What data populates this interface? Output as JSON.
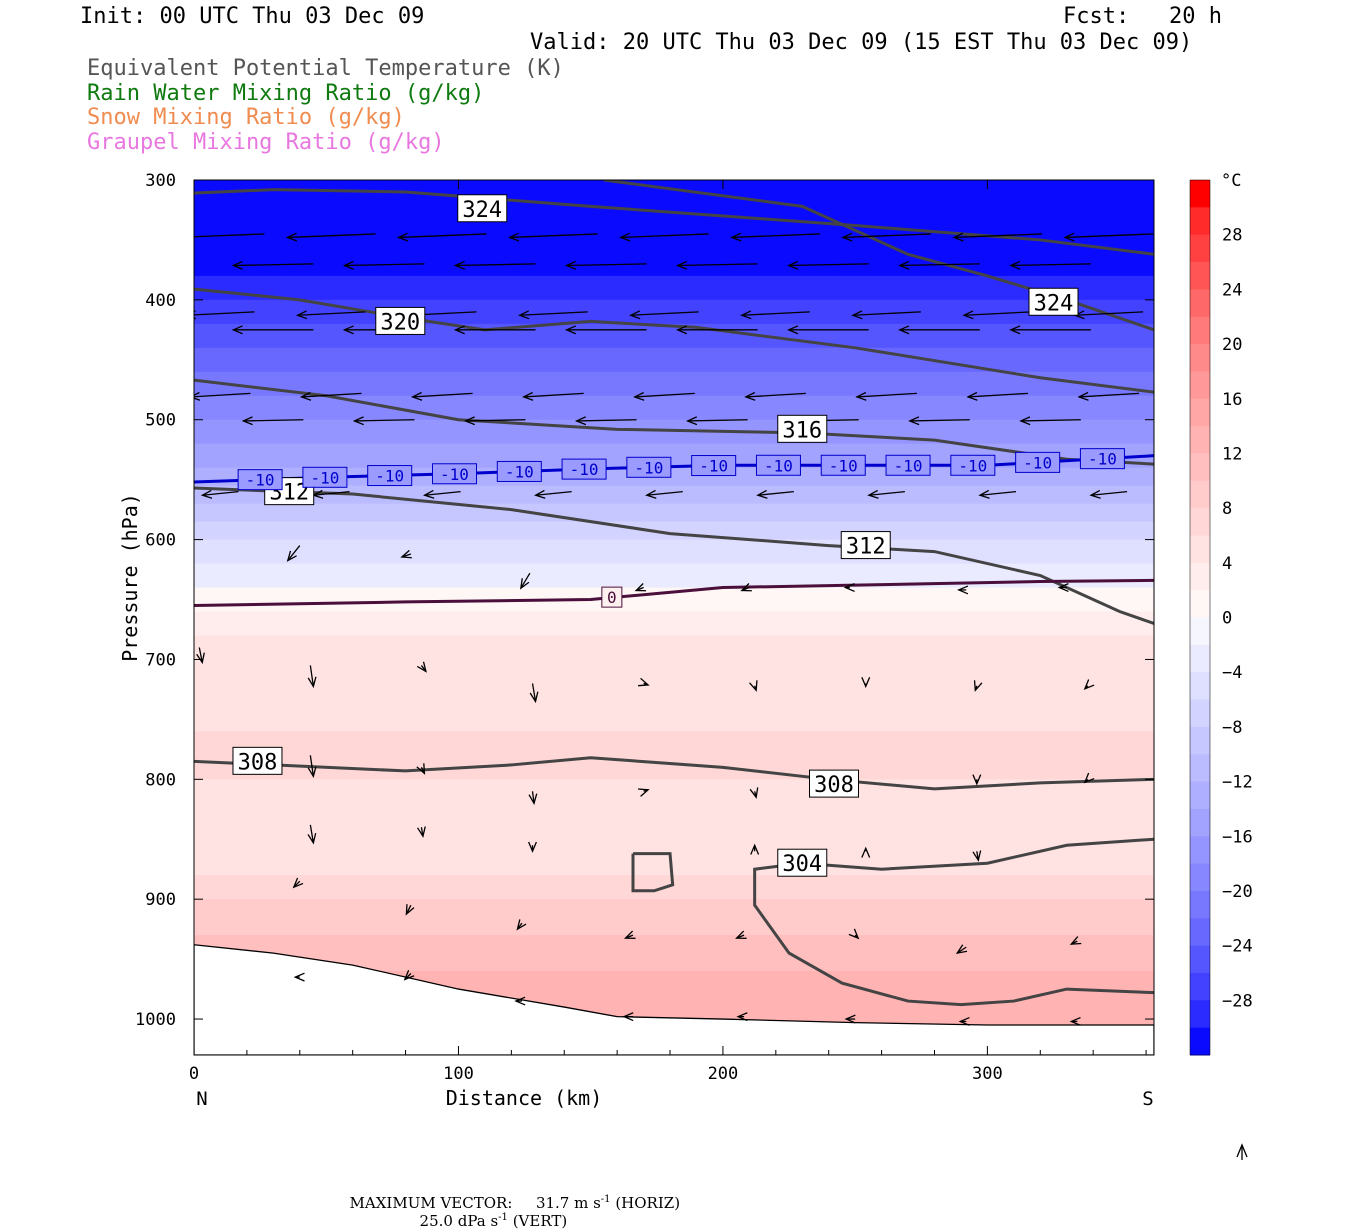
{
  "header": {
    "init": "Init: 00 UTC Thu 03 Dec 09",
    "fcst": "Fcst:   20 h",
    "valid": "Valid: 20 UTC Thu 03 Dec 09 (15 EST Thu 03 Dec 09)"
  },
  "legend_titles": [
    {
      "text": "Equivalent Potential Temperature (K)",
      "color": "#555555"
    },
    {
      "text": "Rain Water Mixing Ratio (g/kg)",
      "color": "#0f7a0f"
    },
    {
      "text": "Snow Mixing Ratio (g/kg)",
      "color": "#f08c50"
    },
    {
      "text": "Graupel Mixing Ratio (g/kg)",
      "color": "#e878e0"
    }
  ],
  "footer": {
    "max_vector_label": "MAXIMUM VECTOR:",
    "horiz_value": "31.7 m s",
    "horiz_exp": "-1",
    "horiz_tag": "(HORIZ)",
    "vert_value": "25.0 dPa s",
    "vert_exp": "-1",
    "vert_tag": "(VERT)"
  },
  "chart_data": {
    "type": "cross-section",
    "xlabel": "Distance (km)",
    "ylabel": "Pressure (hPa)",
    "x_ticks": [
      "0",
      "100",
      "200",
      "300"
    ],
    "x_end_labels": {
      "left": "N",
      "right": "S"
    },
    "xlim": [
      0,
      363
    ],
    "y_ticks": [
      "300",
      "400",
      "500",
      "600",
      "700",
      "800",
      "900",
      "1000"
    ],
    "ylim": [
      1030,
      300
    ],
    "colorbar": {
      "unit": "°C",
      "labels": [
        "28",
        "24",
        "20",
        "16",
        "12",
        "8",
        "4",
        "0",
        "-4",
        "-8",
        "-12",
        "-16",
        "-20",
        "-24",
        "-28"
      ],
      "levels": [
        32,
        30,
        28,
        26,
        24,
        22,
        20,
        18,
        16,
        14,
        12,
        10,
        8,
        6,
        4,
        2,
        0,
        -2,
        -4,
        -6,
        -8,
        -10,
        -12,
        -14,
        -16,
        -18,
        -20,
        -22,
        -24,
        -26,
        -28,
        -30,
        -32
      ],
      "colors_warm": [
        "#ff0000",
        "#ff2a2a",
        "#ff4141",
        "#ff5555",
        "#ff6868",
        "#ff7a7a",
        "#ff8a8a",
        "#ff9898",
        "#ffa6a6",
        "#ffb3b3",
        "#ffbfbf",
        "#ffcbcb",
        "#ffd7d7",
        "#ffe2e2",
        "#ffeded",
        "#fff6f6"
      ],
      "colors_cold": [
        "#f6f6ff",
        "#ebebff",
        "#dfdfff",
        "#d3d3ff",
        "#c7c7ff",
        "#bbbbff",
        "#afafff",
        "#a2a2ff",
        "#9595ff",
        "#8787ff",
        "#7878ff",
        "#6868ff",
        "#5656ff",
        "#4242ff",
        "#2b2bff",
        "#0a0aff"
      ]
    },
    "temperature_bands_degC": [
      {
        "p": 300,
        "t": -32
      },
      {
        "p": 340,
        "t": -30
      },
      {
        "p": 380,
        "t": -28
      },
      {
        "p": 400,
        "t": -26
      },
      {
        "p": 420,
        "t": -24
      },
      {
        "p": 440,
        "t": -22
      },
      {
        "p": 460,
        "t": -20
      },
      {
        "p": 480,
        "t": -18
      },
      {
        "p": 500,
        "t": -16
      },
      {
        "p": 520,
        "t": -14
      },
      {
        "p": 540,
        "t": -12
      },
      {
        "p": 555,
        "t": -10
      },
      {
        "p": 570,
        "t": -8
      },
      {
        "p": 585,
        "t": -6
      },
      {
        "p": 600,
        "t": -4
      },
      {
        "p": 620,
        "t": -2
      },
      {
        "p": 640,
        "t": 0
      },
      {
        "p": 660,
        "t": 2
      },
      {
        "p": 680,
        "t": 4
      },
      {
        "p": 700,
        "t": 5
      },
      {
        "p": 760,
        "t": 6
      },
      {
        "p": 800,
        "t": 4
      },
      {
        "p": 850,
        "t": 4
      },
      {
        "p": 880,
        "t": 6
      },
      {
        "p": 900,
        "t": 8
      },
      {
        "p": 930,
        "t": 10
      },
      {
        "p": 960,
        "t": 12
      },
      {
        "p": 1000,
        "t": 13
      }
    ],
    "theta_e_contours_K": [
      {
        "label": "324",
        "points": [
          [
            0,
            311
          ],
          [
            30,
            308
          ],
          [
            80,
            310
          ],
          [
            150,
            322
          ],
          [
            250,
            338
          ],
          [
            320,
            350
          ],
          [
            363,
            362
          ]
        ]
      },
      {
        "label": "324",
        "points": [
          [
            155,
            300
          ],
          [
            230,
            322
          ],
          [
            270,
            362
          ],
          [
            300,
            380
          ],
          [
            330,
            400
          ],
          [
            363,
            425
          ]
        ]
      },
      {
        "label": "320",
        "points": [
          [
            0,
            391
          ],
          [
            40,
            400
          ],
          [
            80,
            415
          ],
          [
            110,
            425
          ],
          [
            150,
            418
          ],
          [
            190,
            423
          ],
          [
            250,
            440
          ],
          [
            320,
            465
          ],
          [
            363,
            477
          ]
        ]
      },
      {
        "label": "316",
        "points": [
          [
            0,
            467
          ],
          [
            50,
            480
          ],
          [
            100,
            500
          ],
          [
            160,
            508
          ],
          [
            230,
            511
          ],
          [
            280,
            517
          ],
          [
            330,
            533
          ],
          [
            363,
            537
          ]
        ]
      },
      {
        "label": "312",
        "points": [
          [
            0,
            557
          ],
          [
            60,
            562
          ],
          [
            120,
            575
          ],
          [
            180,
            595
          ],
          [
            240,
            605
          ],
          [
            280,
            610
          ],
          [
            320,
            630
          ],
          [
            350,
            660
          ],
          [
            363,
            670
          ]
        ]
      },
      {
        "label": "308",
        "points": [
          [
            0,
            785
          ],
          [
            30,
            788
          ],
          [
            80,
            793
          ],
          [
            120,
            788
          ],
          [
            150,
            782
          ],
          [
            200,
            790
          ],
          [
            240,
            800
          ],
          [
            280,
            808
          ],
          [
            320,
            803
          ],
          [
            363,
            800
          ]
        ]
      },
      {
        "label": "304",
        "points": [
          [
            363,
            850
          ],
          [
            330,
            855
          ],
          [
            300,
            870
          ],
          [
            260,
            875
          ],
          [
            230,
            870
          ],
          [
            212,
            875
          ],
          [
            212,
            905
          ],
          [
            225,
            945
          ],
          [
            245,
            970
          ],
          [
            270,
            985
          ],
          [
            290,
            988
          ],
          [
            310,
            985
          ],
          [
            330,
            975
          ],
          [
            363,
            978
          ]
        ]
      },
      {
        "label": "",
        "points": [
          [
            166,
            862
          ],
          [
            180,
            862
          ],
          [
            181,
            888
          ],
          [
            174,
            893
          ],
          [
            166,
            893
          ],
          [
            166,
            862
          ]
        ]
      }
    ],
    "isotherm_labels": [
      {
        "label": "-10",
        "color": "#0000cc",
        "points": [
          [
            0,
            552
          ],
          [
            50,
            548
          ],
          [
            100,
            545
          ],
          [
            150,
            541
          ],
          [
            200,
            538
          ],
          [
            250,
            538
          ],
          [
            300,
            538
          ],
          [
            363,
            530
          ]
        ]
      },
      {
        "label": "0",
        "color": "#4a0f3a",
        "points": [
          [
            0,
            655
          ],
          [
            80,
            652
          ],
          [
            150,
            650
          ],
          [
            200,
            640
          ],
          [
            250,
            638
          ],
          [
            320,
            635
          ],
          [
            363,
            634
          ]
        ]
      }
    ],
    "terrain_pressure_hPa": [
      [
        0,
        938
      ],
      [
        30,
        945
      ],
      [
        60,
        955
      ],
      [
        100,
        975
      ],
      [
        140,
        990
      ],
      [
        160,
        998
      ],
      [
        200,
        1000
      ],
      [
        250,
        1003
      ],
      [
        300,
        1005
      ],
      [
        363,
        1005
      ]
    ],
    "wind_vectors_count": 90
  }
}
